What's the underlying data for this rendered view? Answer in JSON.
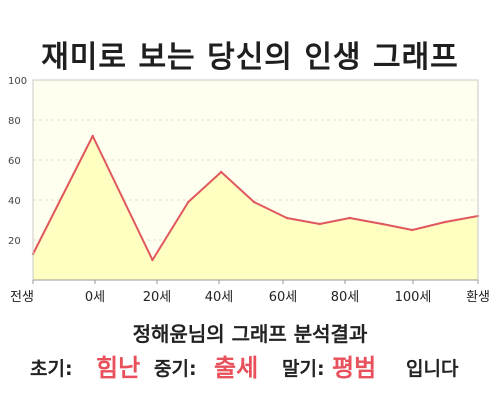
{
  "title": "재미로 보는 당신의 인생 그래프",
  "analysis": {
    "heading": "정해윤님의 그래프 분석결과",
    "early_label": "초기:",
    "early_value": "힘난",
    "middle_label": "중기:",
    "middle_value": "출세",
    "late_label": "말기:",
    "late_value": "평범",
    "ending": "입니다"
  },
  "colors": {
    "line": "#e0585e",
    "fill": "#ffffc2",
    "plot_bg": "#fffff0",
    "accent_text": "#e8505b"
  },
  "chart_data": {
    "type": "area",
    "title": "재미로 보는 당신의 인생 그래프",
    "xlabel": "",
    "ylabel": "",
    "x_tick_labels": [
      "전생",
      "0세",
      "20세",
      "40세",
      "60세",
      "80세",
      "100세",
      "환생"
    ],
    "y_ticks": [
      20,
      40,
      60,
      80,
      100
    ],
    "ylim": [
      0,
      100
    ],
    "grid": true,
    "series": [
      {
        "x": [
          -20,
          0,
          20,
          32,
          43,
          54,
          65,
          76,
          86,
          97,
          107,
          118,
          129
        ],
        "values": [
          13,
          72,
          10,
          39,
          54,
          39,
          31,
          28,
          31,
          28,
          25,
          29,
          32
        ]
      }
    ],
    "xlim": [
      -20,
      129
    ]
  }
}
